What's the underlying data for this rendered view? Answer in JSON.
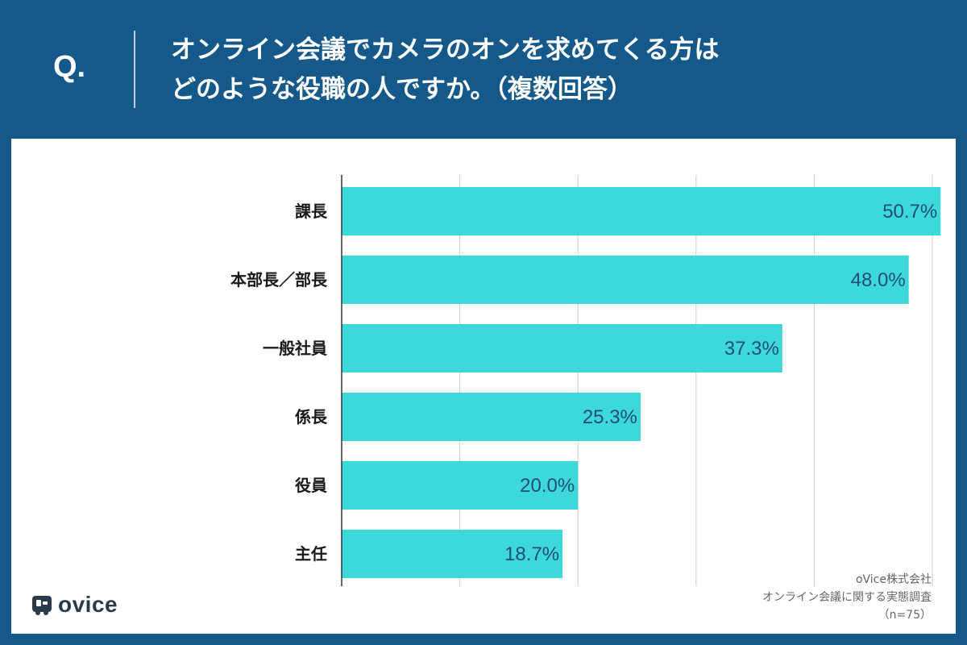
{
  "header": {
    "q_label": "Q.",
    "question_line1": "オンライン会議でカメラのオンを求めてくる方は",
    "question_line2": "どのような役職の人ですか。（複数回答）"
  },
  "colors": {
    "header_bg": "#14598a",
    "bar": "#3dd8d8",
    "value_text": "#1f4e79"
  },
  "chart_data": {
    "type": "bar",
    "orientation": "horizontal",
    "title": "オンライン会議でカメラのオンを求めてくる方はどのような役職の人ですか。（複数回答）",
    "categories": [
      "課長",
      "本部長／部長",
      "一般社員",
      "係長",
      "役員",
      "主任"
    ],
    "values": [
      50.7,
      48.0,
      37.3,
      25.3,
      20.0,
      18.7
    ],
    "value_labels": [
      "50.7%",
      "48.0%",
      "37.3%",
      "25.3%",
      "20.0%",
      "18.7%"
    ],
    "xlim": [
      0,
      60
    ],
    "grid_step": 10,
    "grid": true,
    "xlabel": "",
    "ylabel": ""
  },
  "logo": {
    "text": "ovice"
  },
  "source": {
    "company": "oVice株式会社",
    "survey": "オンライン会議に関する実態調査",
    "sample": "（n=75）"
  }
}
